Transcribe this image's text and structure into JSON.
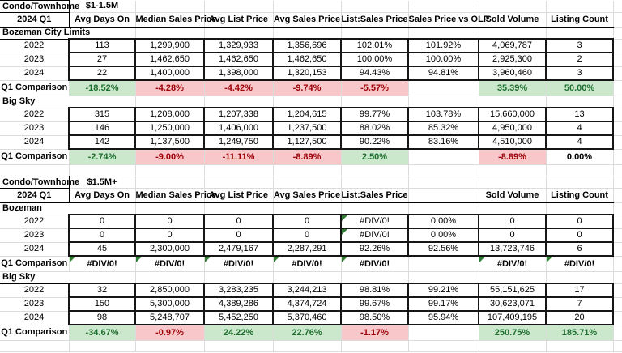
{
  "styles": {
    "positive_fill": "#cbe8cd",
    "positive_text": "#1e6e2e",
    "negative_fill": "#f7c7c9",
    "negative_text": "#9c0006",
    "gridline": "#dcdcdc",
    "block_border": "#161616",
    "label_border": "#000000",
    "error_indicator": "#2e7d32"
  },
  "sections": [
    {
      "title": "Condo/Townhome",
      "price_range": "$1-1.5M",
      "period": "2024 Q1",
      "headers": [
        "Avg Days On",
        "Median Sales Price",
        "Avg List Price",
        "Avg Sales Price",
        "List:Sales Price",
        "Sales Price vs OLP",
        "Sold Volume",
        "Listing Count"
      ],
      "groups": [
        {
          "name": "Bozeman City Limits",
          "rows": [
            {
              "label": "2022",
              "cells": [
                {
                  "t": "113"
                },
                {
                  "t": "1,299,900"
                },
                {
                  "t": "1,329,933"
                },
                {
                  "t": "1,356,696"
                },
                {
                  "t": "102.01%"
                },
                {
                  "t": "101.92%"
                },
                {
                  "t": "4,069,787"
                },
                {
                  "t": "3"
                }
              ]
            },
            {
              "label": "2023",
              "cells": [
                {
                  "t": "27"
                },
                {
                  "t": "1,462,650"
                },
                {
                  "t": "1,462,650"
                },
                {
                  "t": "1,462,650"
                },
                {
                  "t": "100.00%"
                },
                {
                  "t": "100.00%"
                },
                {
                  "t": "2,925,300"
                },
                {
                  "t": "2"
                }
              ]
            },
            {
              "label": "2024",
              "cells": [
                {
                  "t": "22"
                },
                {
                  "t": "1,400,000"
                },
                {
                  "t": "1,398,000"
                },
                {
                  "t": "1,320,153"
                },
                {
                  "t": "94.43%"
                },
                {
                  "t": "94.81%"
                },
                {
                  "t": "3,960,460"
                },
                {
                  "t": "3"
                }
              ]
            }
          ],
          "comparison": {
            "label": "Q1 Comparison",
            "cells": [
              {
                "t": "-18.52%",
                "s": "good"
              },
              {
                "t": "-4.28%",
                "s": "bad"
              },
              {
                "t": "-4.42%",
                "s": "bad"
              },
              {
                "t": "-9.74%",
                "s": "bad"
              },
              {
                "t": "-5.57%",
                "s": "bad"
              },
              {
                "t": "",
                "s": "none"
              },
              {
                "t": "35.39%",
                "s": "good"
              },
              {
                "t": "50.00%",
                "s": "good"
              }
            ]
          }
        },
        {
          "name": "Big Sky",
          "rows": [
            {
              "label": "2022",
              "cells": [
                {
                  "t": "315"
                },
                {
                  "t": "1,208,000"
                },
                {
                  "t": "1,207,338"
                },
                {
                  "t": "1,204,615"
                },
                {
                  "t": "99.77%"
                },
                {
                  "t": "103.78%"
                },
                {
                  "t": "15,660,000"
                },
                {
                  "t": "13"
                }
              ]
            },
            {
              "label": "2023",
              "cells": [
                {
                  "t": "146"
                },
                {
                  "t": "1,250,000"
                },
                {
                  "t": "1,406,000"
                },
                {
                  "t": "1,237,500"
                },
                {
                  "t": "88.02%"
                },
                {
                  "t": "85.32%"
                },
                {
                  "t": "4,950,000"
                },
                {
                  "t": "4"
                }
              ]
            },
            {
              "label": "2024",
              "cells": [
                {
                  "t": "142"
                },
                {
                  "t": "1,137,500"
                },
                {
                  "t": "1,249,750"
                },
                {
                  "t": "1,127,500"
                },
                {
                  "t": "90.22%"
                },
                {
                  "t": "83.16%"
                },
                {
                  "t": "4,510,000"
                },
                {
                  "t": "4"
                }
              ]
            }
          ],
          "comparison": {
            "label": "Q1 Comparison",
            "cells": [
              {
                "t": "-2.74%",
                "s": "good"
              },
              {
                "t": "-9.00%",
                "s": "bad"
              },
              {
                "t": "-11.11%",
                "s": "bad"
              },
              {
                "t": "-8.89%",
                "s": "bad"
              },
              {
                "t": "2.50%",
                "s": "good"
              },
              {
                "t": "",
                "s": "none"
              },
              {
                "t": "-8.89%",
                "s": "bad"
              },
              {
                "t": "0.00%",
                "s": "plain"
              }
            ]
          }
        }
      ]
    },
    {
      "title": "Condo/Townhome",
      "price_range": "$1.5M+",
      "period": "2024 Q1",
      "headers": [
        "Avg Days On",
        "Median Sales Price",
        "Avg List Price",
        "Avg Sales Price",
        "List:Sales Price",
        "",
        "Sold Volume",
        "Listing Count"
      ],
      "groups": [
        {
          "name": "Bozeman",
          "rows": [
            {
              "label": "2022",
              "cells": [
                {
                  "t": "0"
                },
                {
                  "t": "0"
                },
                {
                  "t": "0"
                },
                {
                  "t": "0"
                },
                {
                  "t": "#DIV/0!",
                  "err": true
                },
                {
                  "t": "0.00%"
                },
                {
                  "t": "0"
                },
                {
                  "t": "0"
                }
              ]
            },
            {
              "label": "2023",
              "cells": [
                {
                  "t": "0"
                },
                {
                  "t": "0"
                },
                {
                  "t": "0"
                },
                {
                  "t": "0"
                },
                {
                  "t": "#DIV/0!",
                  "err": true
                },
                {
                  "t": "0.00%"
                },
                {
                  "t": "0"
                },
                {
                  "t": "0"
                }
              ]
            },
            {
              "label": "2024",
              "cells": [
                {
                  "t": "45"
                },
                {
                  "t": "2,300,000"
                },
                {
                  "t": "2,479,167"
                },
                {
                  "t": "2,287,291"
                },
                {
                  "t": "92.26%"
                },
                {
                  "t": "92.56%"
                },
                {
                  "t": "13,723,746"
                },
                {
                  "t": "6"
                }
              ]
            }
          ],
          "comparison": {
            "label": "Q1 Comparison",
            "cells": [
              {
                "t": "#DIV/0!",
                "s": "plain",
                "err": true
              },
              {
                "t": "#DIV/0!",
                "s": "plain",
                "err": true
              },
              {
                "t": "#DIV/0!",
                "s": "plain",
                "err": true
              },
              {
                "t": "#DIV/0!",
                "s": "plain",
                "err": true
              },
              {
                "t": "#DIV/0!",
                "s": "plain",
                "err": true
              },
              {
                "t": "",
                "s": "none"
              },
              {
                "t": "#DIV/0!",
                "s": "plain",
                "err": true
              },
              {
                "t": "#DIV/0!",
                "s": "plain",
                "err": true
              }
            ]
          }
        },
        {
          "name": "Big Sky",
          "rows": [
            {
              "label": "2022",
              "cells": [
                {
                  "t": "32"
                },
                {
                  "t": "2,850,000"
                },
                {
                  "t": "3,283,235"
                },
                {
                  "t": "3,244,213"
                },
                {
                  "t": "98.81%"
                },
                {
                  "t": "99.21%"
                },
                {
                  "t": "55,151,625"
                },
                {
                  "t": "17"
                }
              ]
            },
            {
              "label": "2023",
              "cells": [
                {
                  "t": "150"
                },
                {
                  "t": "5,300,000"
                },
                {
                  "t": "4,389,286"
                },
                {
                  "t": "4,374,724"
                },
                {
                  "t": "99.67%"
                },
                {
                  "t": "99.17%"
                },
                {
                  "t": "30,623,071"
                },
                {
                  "t": "7"
                }
              ]
            },
            {
              "label": "2024",
              "cells": [
                {
                  "t": "98"
                },
                {
                  "t": "5,248,707"
                },
                {
                  "t": "5,452,250"
                },
                {
                  "t": "5,370,460"
                },
                {
                  "t": "98.50%"
                },
                {
                  "t": "95.94%"
                },
                {
                  "t": "107,409,195"
                },
                {
                  "t": "20"
                }
              ]
            }
          ],
          "comparison": {
            "label": "Q1 Comparison",
            "cells": [
              {
                "t": "-34.67%",
                "s": "good"
              },
              {
                "t": "-0.97%",
                "s": "bad"
              },
              {
                "t": "24.22%",
                "s": "good"
              },
              {
                "t": "22.76%",
                "s": "good"
              },
              {
                "t": "-1.17%",
                "s": "bad"
              },
              {
                "t": "",
                "s": "none"
              },
              {
                "t": "250.75%",
                "s": "good"
              },
              {
                "t": "185.71%",
                "s": "good"
              }
            ]
          }
        }
      ]
    }
  ]
}
